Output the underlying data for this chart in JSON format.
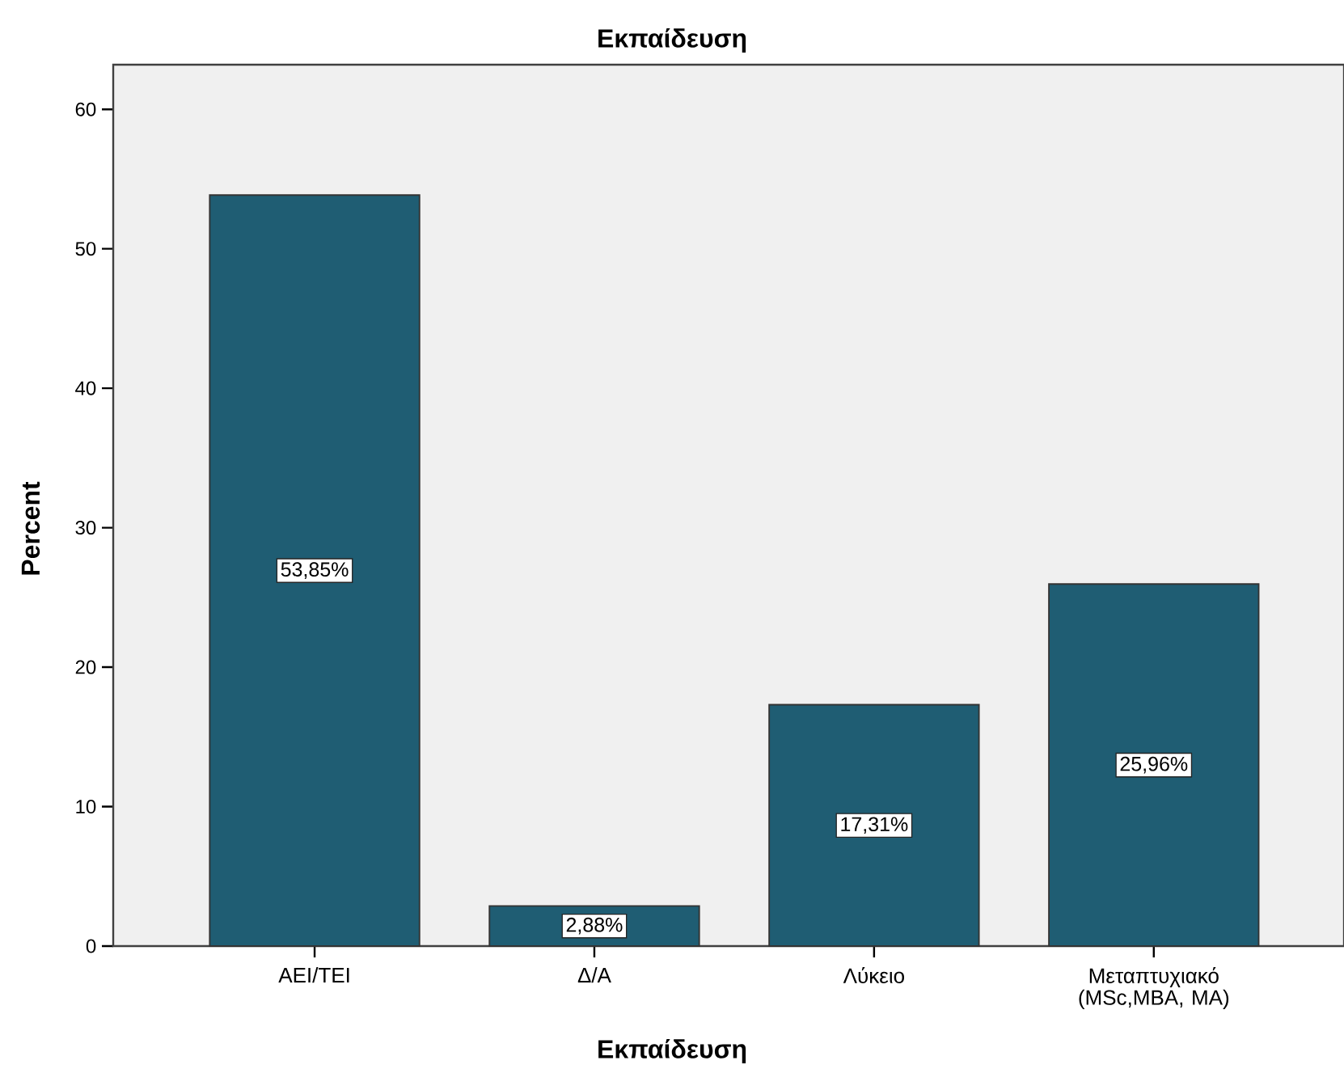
{
  "chart_data": {
    "type": "bar",
    "title": "Εκπαίδευση",
    "xlabel": "Εκπαίδευση",
    "ylabel": "Percent",
    "categories": [
      "ΑΕΙ/ΤΕΙ",
      "Δ/Α",
      "Λύκειο",
      "Μεταπτυχιακό (MSc,MBA, MA)"
    ],
    "values": [
      53.85,
      2.88,
      17.31,
      25.96
    ],
    "value_labels": [
      "53,85%",
      "2,88%",
      "17,31%",
      "25,96%"
    ],
    "color": "#1f5d73",
    "ylim": [
      0,
      63.2
    ],
    "yticks": [
      0,
      10,
      20,
      30,
      40,
      50,
      60
    ]
  }
}
